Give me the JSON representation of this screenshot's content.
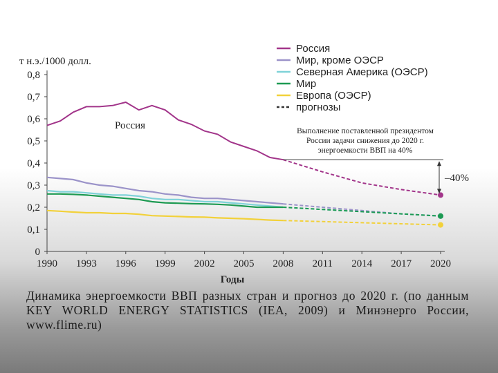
{
  "chart_data": {
    "type": "line",
    "ylabel": "т н.э./1000 долл.",
    "xlabel": "Годы",
    "ylim": [
      0,
      0.8
    ],
    "xlim": [
      1990,
      2020
    ],
    "yticks": [
      "0",
      "0,1",
      "0,2",
      "0,3",
      "0,4",
      "0,5",
      "0,6",
      "0,7",
      "0,8"
    ],
    "xticks": [
      "1990",
      "1993",
      "1996",
      "1999",
      "2002",
      "2005",
      "2008",
      "2011",
      "2014",
      "2017",
      "2020"
    ],
    "legend_position": "top-right",
    "series": [
      {
        "name": "Россия",
        "color": "#a2358a",
        "x": [
          1990,
          1991,
          1992,
          1993,
          1994,
          1995,
          1996,
          1997,
          1998,
          1999,
          2000,
          2001,
          2002,
          2003,
          2004,
          2005,
          2006,
          2007,
          2008
        ],
        "y": [
          0.57,
          0.59,
          0.63,
          0.655,
          0.655,
          0.66,
          0.675,
          0.64,
          0.66,
          0.64,
          0.595,
          0.575,
          0.545,
          0.53,
          0.495,
          0.475,
          0.455,
          0.425,
          0.415
        ],
        "forecast_x": [
          2008,
          2011,
          2014,
          2017,
          2020
        ],
        "forecast_y": [
          0.415,
          0.36,
          0.31,
          0.28,
          0.255
        ]
      },
      {
        "name": "Мир,  кроме ОЭСР",
        "color": "#9b93c9",
        "x": [
          1990,
          1991,
          1992,
          1993,
          1994,
          1995,
          1996,
          1997,
          1998,
          1999,
          2000,
          2001,
          2002,
          2003,
          2004,
          2005,
          2006,
          2007,
          2008
        ],
        "y": [
          0.335,
          0.33,
          0.325,
          0.31,
          0.3,
          0.295,
          0.285,
          0.275,
          0.27,
          0.26,
          0.255,
          0.245,
          0.24,
          0.24,
          0.235,
          0.23,
          0.225,
          0.22,
          0.215
        ],
        "forecast_x": [
          2008,
          2011,
          2014,
          2017,
          2020
        ],
        "forecast_y": [
          0.215,
          0.2,
          0.185,
          0.17,
          0.16
        ]
      },
      {
        "name": "Северная Америка (ОЭСР)",
        "color": "#7fd2d8",
        "x": [
          1990,
          1991,
          1992,
          1993,
          1994,
          1995,
          1996,
          1997,
          1998,
          1999,
          2000,
          2001,
          2002,
          2003,
          2004,
          2005,
          2006,
          2007,
          2008
        ],
        "y": [
          0.275,
          0.27,
          0.27,
          0.265,
          0.26,
          0.255,
          0.255,
          0.25,
          0.24,
          0.235,
          0.235,
          0.23,
          0.225,
          0.225,
          0.22,
          0.215,
          0.21,
          0.205,
          0.2
        ],
        "forecast_x": [
          2008,
          2011,
          2014,
          2017,
          2020
        ],
        "forecast_y": [
          0.2,
          0.19,
          0.18,
          0.17,
          0.16
        ]
      },
      {
        "name": "Мир",
        "color": "#1d9a52",
        "x": [
          1990,
          1991,
          1992,
          1993,
          1994,
          1995,
          1996,
          1997,
          1998,
          1999,
          2000,
          2001,
          2002,
          2003,
          2004,
          2005,
          2006,
          2007,
          2008
        ],
        "y": [
          0.26,
          0.26,
          0.258,
          0.255,
          0.25,
          0.245,
          0.24,
          0.235,
          0.225,
          0.22,
          0.218,
          0.216,
          0.215,
          0.213,
          0.21,
          0.205,
          0.2,
          0.2,
          0.2
        ],
        "forecast_x": [
          2008,
          2011,
          2014,
          2017,
          2020
        ],
        "forecast_y": [
          0.2,
          0.19,
          0.18,
          0.17,
          0.16
        ]
      },
      {
        "name": "Европа (ОЭСР)",
        "color": "#f2d13a",
        "x": [
          1990,
          1991,
          1992,
          1993,
          1994,
          1995,
          1996,
          1997,
          1998,
          1999,
          2000,
          2001,
          2002,
          2003,
          2004,
          2005,
          2006,
          2007,
          2008
        ],
        "y": [
          0.185,
          0.182,
          0.178,
          0.175,
          0.175,
          0.172,
          0.172,
          0.168,
          0.162,
          0.16,
          0.158,
          0.156,
          0.155,
          0.152,
          0.15,
          0.148,
          0.145,
          0.142,
          0.14
        ],
        "forecast_x": [
          2008,
          2011,
          2014,
          2017,
          2020
        ],
        "forecast_y": [
          0.14,
          0.135,
          0.13,
          0.125,
          0.12
        ]
      }
    ],
    "legend_extra": {
      "label": "прогнозы",
      "style": "dashed"
    },
    "series_label": "Россия",
    "note_lines": [
      "Выполнение поставленной президентом",
      "России задачи  снижения до 2020  г.",
      "энергоемкости ВВП на 40%"
    ],
    "reduction_label": "–40%"
  },
  "caption": "Динамика энергоемкости ВВП разных стран и прогноз до 2020 г. (по данным KEY WORLD ENERGY STATISTICS (IEA, 2009) и Минэнерго России, www.flime.ru)"
}
